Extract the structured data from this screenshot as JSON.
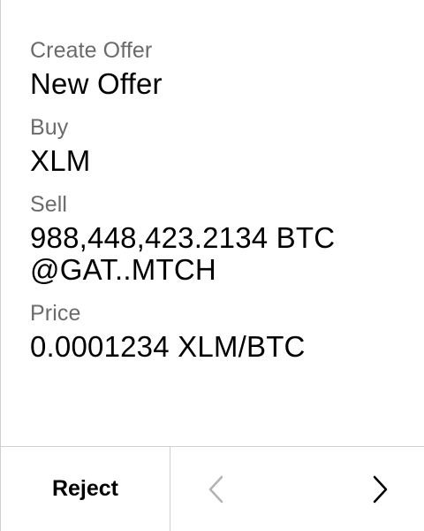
{
  "offer": {
    "header_label": "Create Offer",
    "header_value": "New Offer",
    "buy_label": "Buy",
    "buy_value": "XLM",
    "sell_label": "Sell",
    "sell_value_line1": "988,448,423.2134 BTC",
    "sell_value_line2": "@GAT..MTCH",
    "price_label": "Price",
    "price_value": "0.0001234 XLM/BTC"
  },
  "footer": {
    "reject_label": "Reject",
    "prev_icon": "chevron-left-icon",
    "next_icon": "chevron-right-icon",
    "prev_enabled": false,
    "next_enabled": true
  },
  "colors": {
    "label": "#6b6b6b",
    "value": "#000000",
    "divider": "#cfcfcf",
    "disabled_icon": "#b3b3b3",
    "enabled_icon": "#000000"
  }
}
